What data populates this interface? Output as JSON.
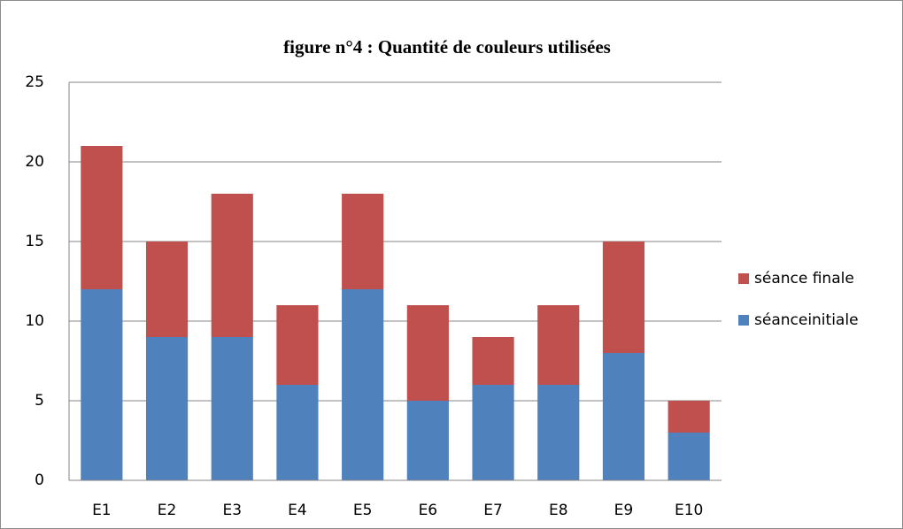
{
  "chart_data": {
    "type": "stacked_bar",
    "title": "figure n°4 : Quantité de couleurs utilisées",
    "categories": [
      "E1",
      "E2",
      "E3",
      "E4",
      "E5",
      "E6",
      "E7",
      "E8",
      "E9",
      "E10"
    ],
    "series": [
      {
        "name": "séanceinitiale",
        "color": "#4f81bd",
        "values": [
          12,
          9,
          9,
          6,
          12,
          5,
          6,
          6,
          8,
          3
        ]
      },
      {
        "name": "séance finale",
        "color": "#c0504d",
        "values": [
          9,
          6,
          9,
          5,
          6,
          6,
          3,
          5,
          7,
          2
        ]
      }
    ],
    "ylim": [
      0,
      25
    ],
    "yticks": [
      0,
      5,
      10,
      15,
      20,
      25
    ],
    "grid": true,
    "legend": "right"
  }
}
